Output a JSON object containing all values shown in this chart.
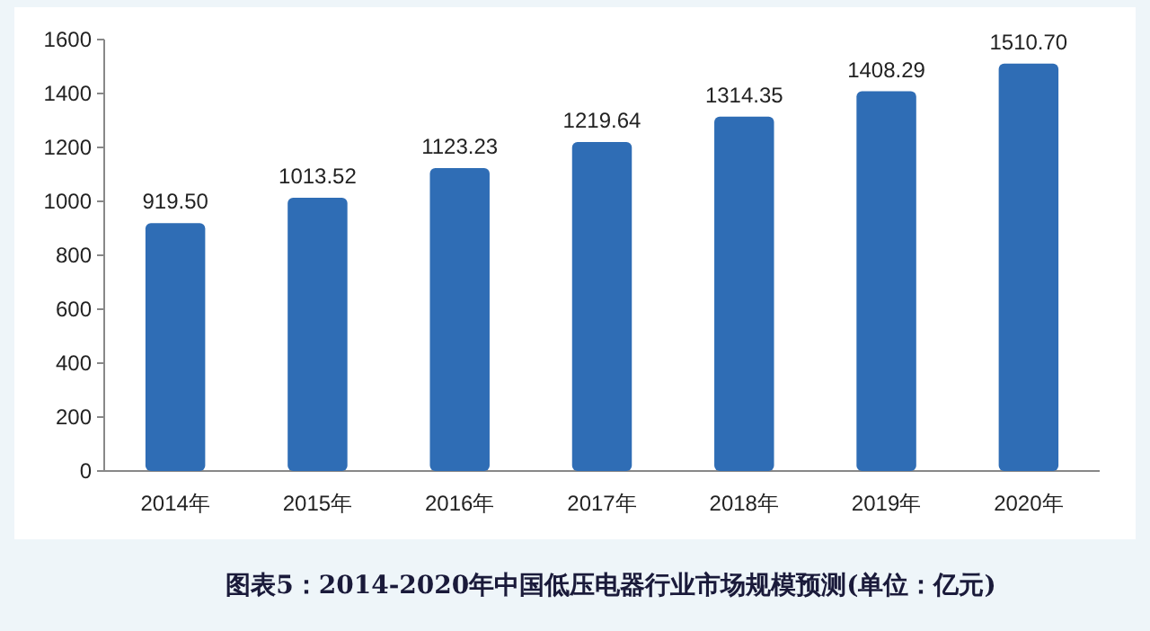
{
  "chart_data": {
    "type": "bar",
    "categories": [
      "2014年",
      "2015年",
      "2016年",
      "2017年",
      "2018年",
      "2019年",
      "2020年"
    ],
    "values": [
      919.5,
      1013.52,
      1123.23,
      1219.64,
      1314.35,
      1408.29,
      1510.7
    ],
    "value_labels": [
      "919.50",
      "1013.52",
      "1123.23",
      "1219.64",
      "1314.35",
      "1408.29",
      "1510.70"
    ],
    "color": "#2f6db5",
    "ylim": [
      0,
      1600
    ],
    "yticks": [
      0,
      200,
      400,
      600,
      800,
      1000,
      1200,
      1400,
      1600
    ],
    "annotations": [
      "图表5：2014-2020年中国低压电器行业市场规模预测(单位：亿元)"
    ]
  }
}
